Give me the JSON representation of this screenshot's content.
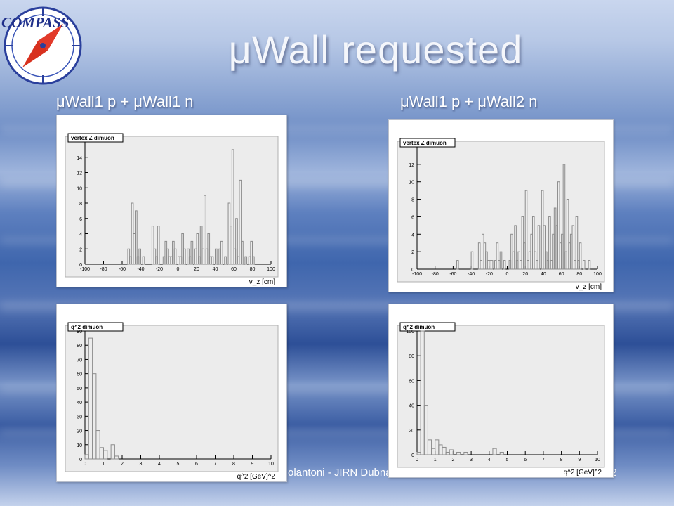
{
  "slide": {
    "logo_text": "COMPASS",
    "title": "μWall requested",
    "left_heading": "μWall1 p + μWall1 n",
    "right_heading": "μWall1 p + μWall2 n",
    "footer_text": "olantoni - JIRN Dubna",
    "page_number": "12"
  },
  "colors": {
    "histogram": "#8c8c8c",
    "frame_bg": "#ececec"
  },
  "chart_data": [
    {
      "type": "bar",
      "title": "vertex Z dimuon",
      "xlabel": "v_z [cm]",
      "xlim": [
        -100,
        100
      ],
      "ylim": [
        0,
        16
      ],
      "xticks": [
        -100,
        -80,
        -60,
        -40,
        -20,
        0,
        20,
        40,
        60,
        80,
        100
      ],
      "yticks": [
        0,
        2,
        4,
        6,
        8,
        10,
        12,
        14
      ],
      "bin_width": 2,
      "values": [
        0,
        0,
        0,
        0,
        0,
        0,
        0,
        0,
        0,
        0,
        0,
        0,
        0,
        0,
        0,
        0,
        0,
        0,
        0,
        0,
        0,
        0,
        0,
        2,
        1,
        8,
        4,
        7,
        1,
        2,
        0,
        1,
        0,
        0,
        0,
        0,
        5,
        2,
        1,
        5,
        0,
        0,
        1,
        3,
        2,
        1,
        1,
        3,
        2,
        0,
        1,
        1,
        4,
        2,
        0,
        2,
        1,
        3,
        0,
        2,
        4,
        1,
        5,
        2,
        9,
        2,
        4,
        1,
        1,
        0,
        2,
        0,
        2,
        3,
        0,
        1,
        0,
        8,
        5,
        15,
        2,
        6,
        1,
        11,
        3,
        0,
        1,
        0,
        1,
        3,
        1,
        0,
        0,
        0,
        0,
        0,
        0,
        0,
        0,
        0
      ]
    },
    {
      "type": "bar",
      "title": "vertex Z dimuon",
      "xlabel": "v_z [cm]",
      "xlim": [
        -100,
        100
      ],
      "ylim": [
        0,
        14
      ],
      "xticks": [
        -100,
        -80,
        -60,
        -40,
        -20,
        0,
        20,
        40,
        60,
        80,
        100
      ],
      "yticks": [
        0,
        2,
        4,
        6,
        8,
        10,
        12
      ],
      "bin_width": 2,
      "values": [
        0,
        0,
        0,
        0,
        0,
        0,
        0,
        0,
        0,
        0,
        0,
        0,
        0,
        0,
        0,
        0,
        0,
        0,
        0,
        0,
        0,
        0,
        1,
        0,
        0,
        0,
        0,
        0,
        0,
        0,
        2,
        0,
        0,
        0,
        3,
        1,
        4,
        3,
        2,
        1,
        1,
        1,
        0,
        1,
        3,
        1,
        2,
        0,
        1,
        0,
        0,
        1,
        4,
        2,
        5,
        1,
        2,
        1,
        6,
        3,
        9,
        1,
        2,
        4,
        6,
        2,
        1,
        5,
        0,
        9,
        5,
        2,
        1,
        6,
        1,
        4,
        7,
        5,
        10,
        3,
        4,
        12,
        2,
        8,
        3,
        4,
        5,
        1,
        6,
        1,
        3,
        0,
        1,
        0,
        0,
        1,
        0,
        0,
        0,
        0
      ]
    },
    {
      "type": "bar",
      "title": "q^2 dimuon",
      "xlabel": "q^2 [GeV]^2",
      "xlim": [
        0,
        10
      ],
      "ylim": [
        0,
        90
      ],
      "xticks": [
        0,
        1,
        2,
        3,
        4,
        5,
        6,
        7,
        8,
        9,
        10
      ],
      "yticks": [
        0,
        10,
        20,
        30,
        40,
        50,
        60,
        70,
        80,
        90
      ],
      "bin_width": 0.2,
      "values": [
        3,
        85,
        60,
        20,
        8,
        6,
        0,
        10,
        2,
        0,
        0,
        0,
        0,
        0,
        0,
        0,
        0,
        0,
        0,
        0,
        0,
        0,
        0,
        0,
        0,
        0,
        0,
        0,
        0,
        0,
        0,
        0,
        0,
        0,
        0,
        0,
        0,
        0,
        0,
        0,
        0,
        0,
        0,
        0,
        0,
        0,
        0,
        0,
        0,
        0
      ]
    },
    {
      "type": "bar",
      "title": "q^2 dimuon",
      "xlabel": "q^2 [GeV]^2",
      "xlim": [
        0,
        10
      ],
      "ylim": [
        0,
        100
      ],
      "xticks": [
        0,
        1,
        2,
        3,
        4,
        5,
        6,
        7,
        8,
        9,
        10
      ],
      "yticks": [
        0,
        20,
        40,
        60,
        80,
        100
      ],
      "bin_width": 0.2,
      "values": [
        2,
        100,
        40,
        12,
        5,
        12,
        8,
        6,
        2,
        4,
        0,
        2,
        0,
        2,
        0,
        0,
        0,
        0,
        0,
        0,
        0,
        5,
        0,
        2,
        0,
        0,
        0,
        0,
        0,
        0,
        0,
        0,
        0,
        0,
        0,
        0,
        0,
        0,
        0,
        0,
        0,
        0,
        0,
        0,
        0,
        0,
        0,
        0,
        0,
        0
      ]
    }
  ]
}
